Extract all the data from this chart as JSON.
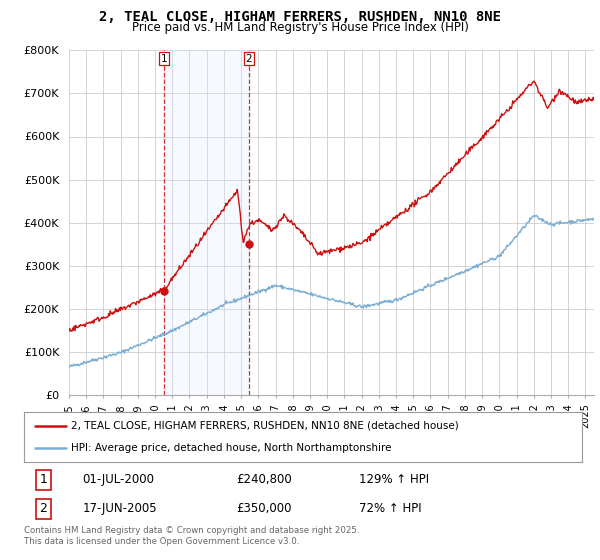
{
  "title": "2, TEAL CLOSE, HIGHAM FERRERS, RUSHDEN, NN10 8NE",
  "subtitle": "Price paid vs. HM Land Registry's House Price Index (HPI)",
  "background_color": "#ffffff",
  "plot_background": "#ffffff",
  "grid_color": "#cccccc",
  "hpi_color": "#7aadd4",
  "price_color": "#cc1111",
  "shade_color": "#ddeeff",
  "sale1_date": 2000.5,
  "sale1_price": 240800,
  "sale2_date": 2005.46,
  "sale2_price": 350000,
  "ylim": [
    0,
    800000
  ],
  "yticks": [
    0,
    100000,
    200000,
    300000,
    400000,
    500000,
    600000,
    700000,
    800000
  ],
  "ytick_labels": [
    "£0",
    "£100K",
    "£200K",
    "£300K",
    "£400K",
    "£500K",
    "£600K",
    "£700K",
    "£800K"
  ],
  "xlim_start": 1995.0,
  "xlim_end": 2025.5,
  "legend_line1": "2, TEAL CLOSE, HIGHAM FERRERS, RUSHDEN, NN10 8NE (detached house)",
  "legend_line2": "HPI: Average price, detached house, North Northamptonshire",
  "annotation1_date": "01-JUL-2000",
  "annotation1_price": "£240,800",
  "annotation1_hpi": "129% ↑ HPI",
  "annotation2_date": "17-JUN-2005",
  "annotation2_price": "£350,000",
  "annotation2_hpi": "72% ↑ HPI",
  "footer": "Contains HM Land Registry data © Crown copyright and database right 2025.\nThis data is licensed under the Open Government Licence v3.0."
}
